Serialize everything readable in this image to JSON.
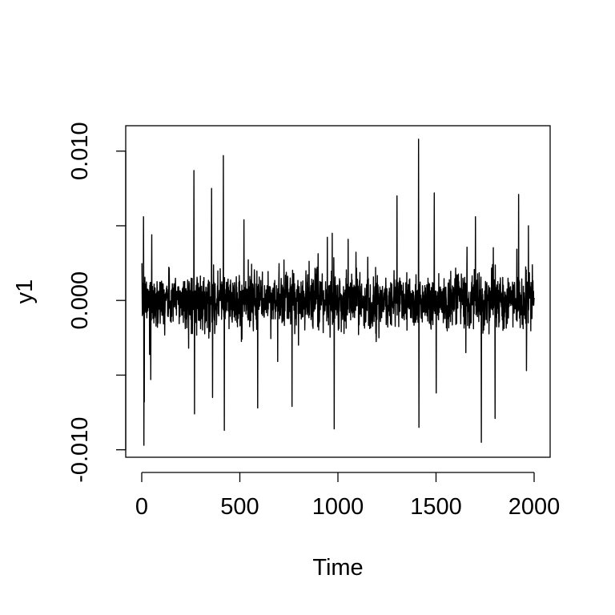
{
  "chart_data": {
    "type": "line",
    "title": "",
    "xlabel": "Time",
    "ylabel": "y1",
    "xlim": [
      0,
      2000
    ],
    "ylim": [
      -0.0105,
      0.0117
    ],
    "x_ticks": [
      0,
      500,
      1000,
      1500,
      2000
    ],
    "x_tick_labels": [
      "0",
      "500",
      "1000",
      "1500",
      "2000"
    ],
    "y_ticks": [
      -0.01,
      -0.005,
      0,
      0.005,
      0.01
    ],
    "y_tick_labels": [
      "-0.010",
      "",
      "0.000",
      "",
      "0.010"
    ],
    "grid": false,
    "n": 2000,
    "typical_abs": 0.0012,
    "spikes": [
      {
        "x": 8,
        "y": 0.0056
      },
      {
        "x": 10,
        "y": -0.0097
      },
      {
        "x": 12,
        "y": -0.0068
      },
      {
        "x": 45,
        "y": -0.0053
      },
      {
        "x": 50,
        "y": 0.0044
      },
      {
        "x": 265,
        "y": 0.0087
      },
      {
        "x": 268,
        "y": -0.0076
      },
      {
        "x": 355,
        "y": 0.0075
      },
      {
        "x": 360,
        "y": -0.0065
      },
      {
        "x": 415,
        "y": 0.0097
      },
      {
        "x": 420,
        "y": -0.0087
      },
      {
        "x": 520,
        "y": 0.0054
      },
      {
        "x": 590,
        "y": -0.0072
      },
      {
        "x": 765,
        "y": -0.0071
      },
      {
        "x": 970,
        "y": 0.0045
      },
      {
        "x": 980,
        "y": -0.0086
      },
      {
        "x": 1300,
        "y": 0.007
      },
      {
        "x": 1410,
        "y": 0.0108
      },
      {
        "x": 1412,
        "y": -0.0085
      },
      {
        "x": 1490,
        "y": 0.0072
      },
      {
        "x": 1500,
        "y": -0.0062
      },
      {
        "x": 1700,
        "y": 0.0056
      },
      {
        "x": 1730,
        "y": -0.0095
      },
      {
        "x": 1800,
        "y": -0.0079
      },
      {
        "x": 1920,
        "y": 0.0071
      },
      {
        "x": 1960,
        "y": -0.0047
      },
      {
        "x": 1970,
        "y": 0.005
      }
    ],
    "series": [
      {
        "values_note": ""
      }
    ]
  }
}
